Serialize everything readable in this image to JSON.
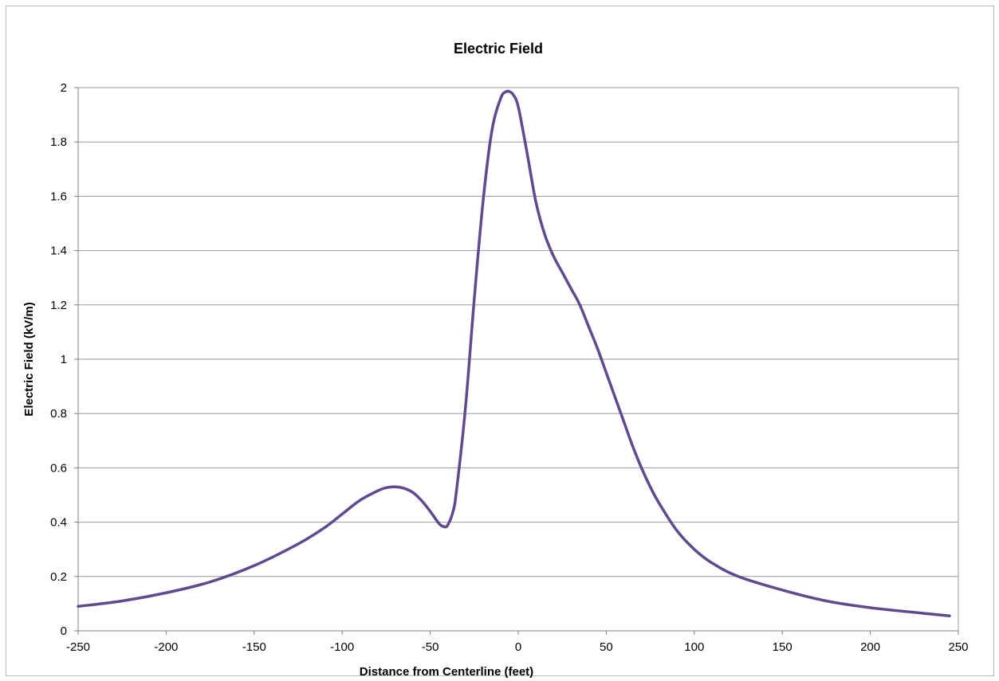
{
  "chart_data": {
    "type": "line",
    "title": "Electric Field",
    "xlabel": "Distance from Centerline (feet)",
    "ylabel": "Electric Field (kV/m)",
    "xlim": [
      -250,
      250
    ],
    "ylim": [
      0,
      2
    ],
    "x_ticks": [
      -250,
      -200,
      -150,
      -100,
      -50,
      0,
      50,
      100,
      150,
      200,
      250
    ],
    "y_ticks": [
      0,
      0.2,
      0.4,
      0.6,
      0.8,
      1,
      1.2,
      1.4,
      1.6,
      1.8,
      2
    ],
    "x_tick_labels": [
      "-250",
      "-200",
      "-150",
      "-100",
      "-50",
      "0",
      "50",
      "100",
      "150",
      "200",
      "250"
    ],
    "y_tick_labels": [
      "0",
      "0.2",
      "0.4",
      "0.6",
      "0.8",
      "1",
      "1.2",
      "1.4",
      "1.6",
      "1.8",
      "2"
    ],
    "grid": true,
    "series": [
      {
        "color": "#5e4a8c",
        "x": [
          -250,
          -225,
          -200,
          -175,
          -150,
          -125,
          -110,
          -100,
          -90,
          -80,
          -75,
          -70,
          -65,
          -60,
          -55,
          -50,
          -45,
          -42,
          -40,
          -37,
          -35,
          -30,
          -25,
          -20,
          -15,
          -10,
          -7,
          -5,
          -3,
          0,
          5,
          10,
          15,
          20,
          25,
          30,
          35,
          40,
          45,
          50,
          55,
          60,
          65,
          70,
          75,
          80,
          90,
          100,
          110,
          125,
          150,
          175,
          200,
          225,
          245
        ],
        "y": [
          0.09,
          0.11,
          0.14,
          0.18,
          0.24,
          0.32,
          0.38,
          0.43,
          0.48,
          0.515,
          0.527,
          0.53,
          0.525,
          0.51,
          0.48,
          0.44,
          0.395,
          0.383,
          0.39,
          0.44,
          0.52,
          0.82,
          1.22,
          1.58,
          1.84,
          1.96,
          1.985,
          1.985,
          1.975,
          1.93,
          1.76,
          1.58,
          1.46,
          1.38,
          1.32,
          1.26,
          1.2,
          1.12,
          1.04,
          0.95,
          0.86,
          0.77,
          0.68,
          0.6,
          0.53,
          0.47,
          0.37,
          0.3,
          0.25,
          0.2,
          0.15,
          0.11,
          0.085,
          0.068,
          0.055
        ]
      }
    ]
  }
}
